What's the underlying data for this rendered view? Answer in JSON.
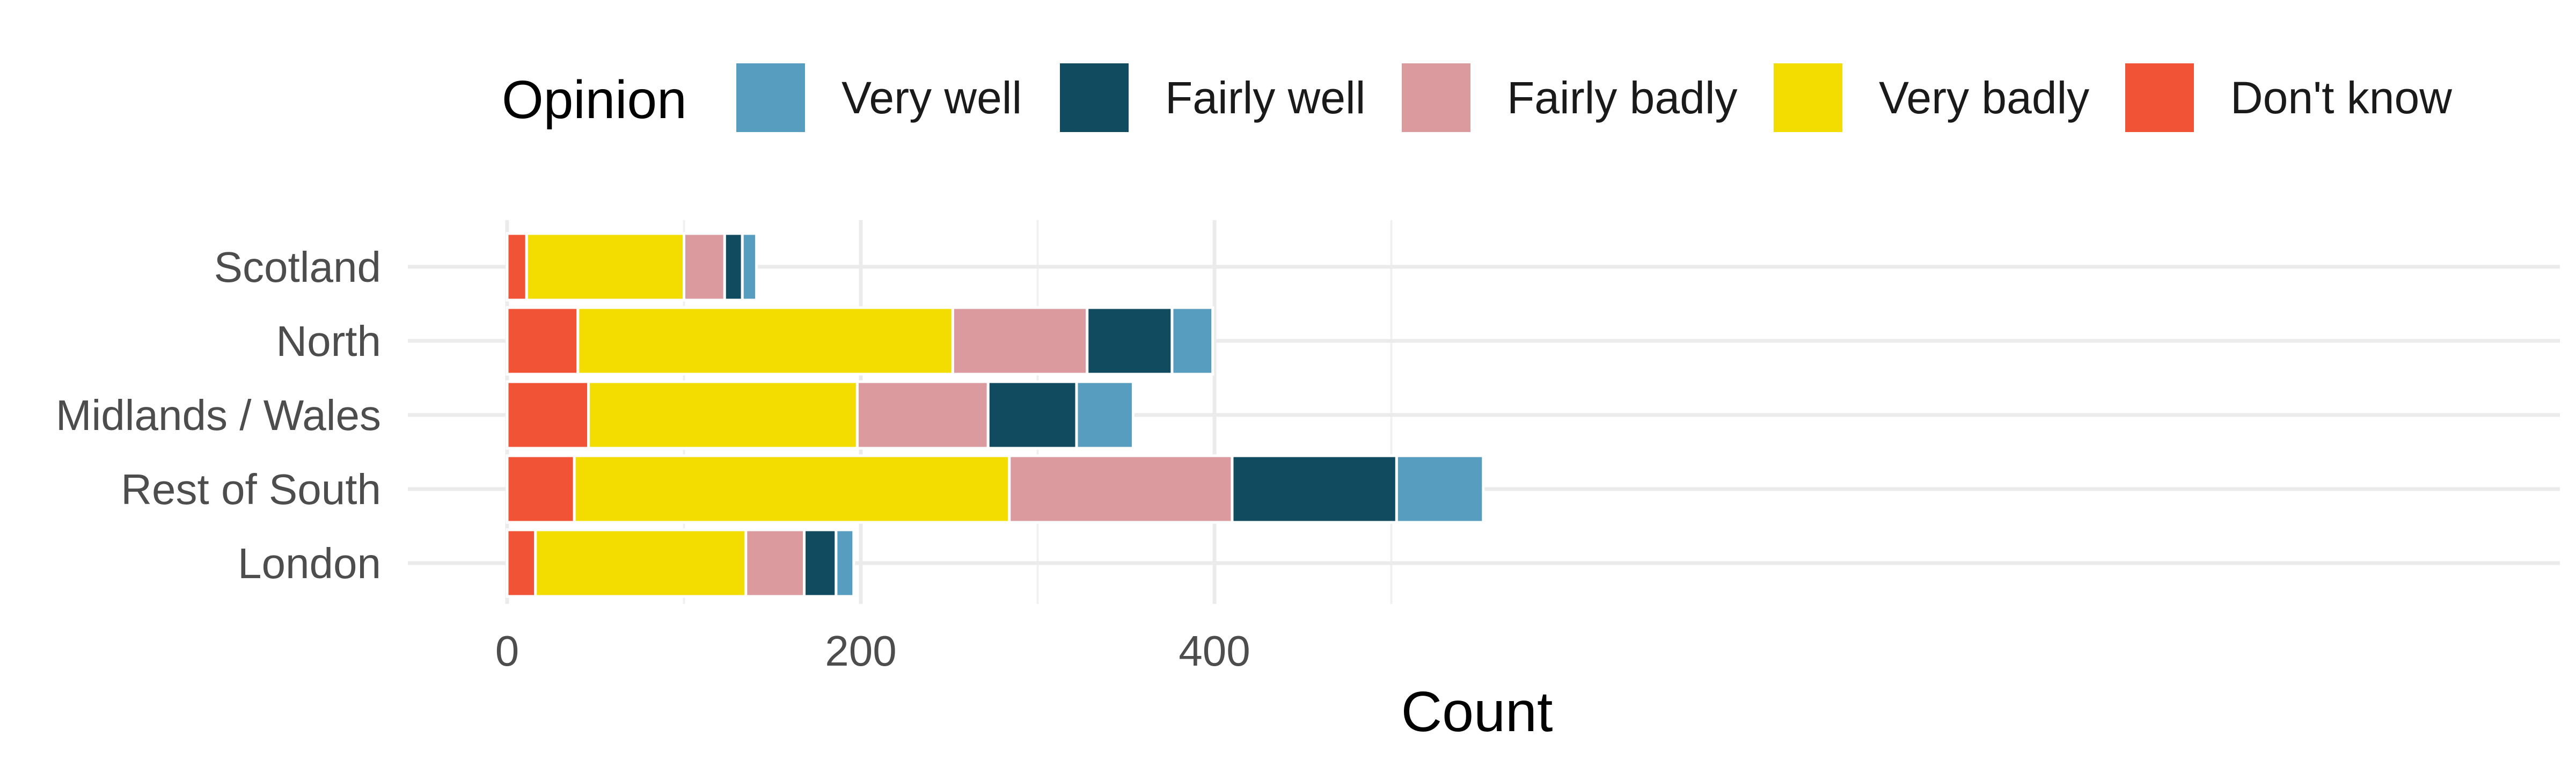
{
  "chart_data": {
    "type": "bar",
    "orientation": "horizontal",
    "stacked": true,
    "xlabel": "Count",
    "ylabel": "",
    "xlim": [
      0,
      580
    ],
    "x_ticks": [
      0,
      200,
      400
    ],
    "x_tick_labels": [
      "0",
      "200",
      "400"
    ],
    "grid": true,
    "legend": {
      "title": "Opinion",
      "position": "top",
      "entries": [
        {
          "name": "Very well",
          "color": "#569DC0"
        },
        {
          "name": "Fairly well",
          "color": "#114B5F"
        },
        {
          "name": "Fairly badly",
          "color": "#DA9A9E"
        },
        {
          "name": "Very badly",
          "color": "#F3DD00"
        },
        {
          "name": "Don't know",
          "color": "#F05336"
        }
      ]
    },
    "categories": [
      "Scotland",
      "North",
      "Midlands / Wales",
      "Rest of South",
      "London"
    ],
    "stack_order": [
      "Don't know",
      "Very badly",
      "Fairly badly",
      "Fairly well",
      "Very well"
    ],
    "series": [
      {
        "name": "Don't know",
        "values": [
          11,
          40,
          46,
          38,
          16
        ]
      },
      {
        "name": "Very badly",
        "values": [
          89,
          212,
          152,
          246,
          119
        ]
      },
      {
        "name": "Fairly badly",
        "values": [
          23,
          76,
          74,
          126,
          33
        ]
      },
      {
        "name": "Fairly well",
        "values": [
          10,
          48,
          50,
          93,
          18
        ]
      },
      {
        "name": "Very well",
        "values": [
          8,
          23,
          32,
          49,
          10
        ]
      }
    ]
  }
}
